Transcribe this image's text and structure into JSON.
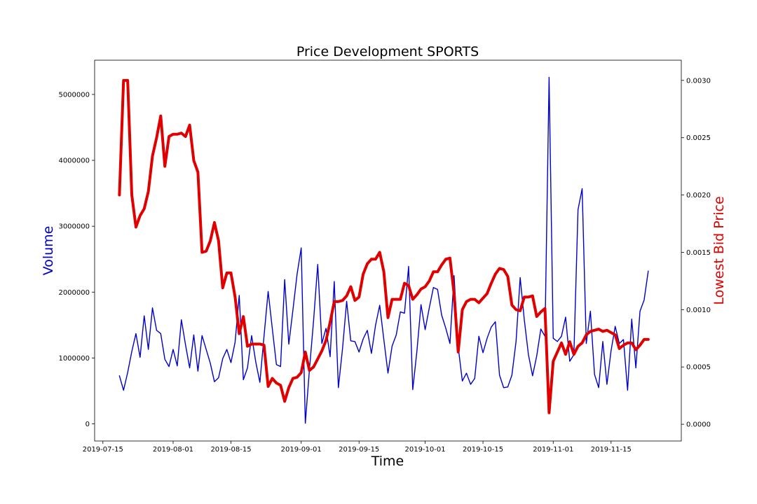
{
  "chart_data": {
    "type": "line",
    "title": "Price Development SPORTS",
    "xlabel": "Time",
    "ylabel_left": "Volume",
    "ylabel_right": "Lowest Bid Price",
    "grid": false,
    "x_start": "2019-07-19",
    "x_tick_labels": [
      "2019-07-15",
      "2019-08-01",
      "2019-08-15",
      "2019-09-01",
      "2019-09-15",
      "2019-10-01",
      "2019-10-15",
      "2019-11-01",
      "2019-11-15"
    ],
    "x_tick_days": [
      -4,
      13,
      27,
      44,
      58,
      74,
      88,
      105,
      119
    ],
    "xlim_days": [
      -6,
      136
    ],
    "ylim_left": [
      -260000,
      5520000
    ],
    "y_left_ticks": [
      0,
      1000000,
      2000000,
      3000000,
      4000000,
      5000000
    ],
    "y_left_tick_labels": [
      "0",
      "1000000",
      "2000000",
      "3000000",
      "4000000",
      "5000000"
    ],
    "ylim_right": [
      -0.000146,
      0.003176
    ],
    "y_right_ticks": [
      0,
      0.0005,
      0.001,
      0.0015,
      0.002,
      0.0025,
      0.003
    ],
    "y_right_tick_labels": [
      "0.0000",
      "0.0005",
      "0.0010",
      "0.0015",
      "0.0020",
      "0.0025",
      "0.0030"
    ],
    "series": [
      {
        "name": "Volume",
        "axis": "left",
        "color": "#0000cc",
        "values": [
          730000,
          510000,
          780000,
          1100000,
          1370000,
          1010000,
          1640000,
          1130000,
          1760000,
          1420000,
          1370000,
          980000,
          870000,
          1130000,
          880000,
          1580000,
          1200000,
          850000,
          1350000,
          800000,
          1340000,
          1130000,
          920000,
          640000,
          700000,
          990000,
          1130000,
          930000,
          1240000,
          1950000,
          670000,
          850000,
          1340000,
          940000,
          630000,
          1330000,
          2010000,
          1450000,
          900000,
          870000,
          2190000,
          1210000,
          1730000,
          2270000,
          2670000,
          10000,
          830000,
          1570000,
          2420000,
          1220000,
          1450000,
          1020000,
          2160000,
          550000,
          1140000,
          1860000,
          1260000,
          1250000,
          1090000,
          1290000,
          1420000,
          1070000,
          1500000,
          1800000,
          1280000,
          770000,
          1180000,
          1350000,
          1700000,
          1680000,
          2390000,
          520000,
          1100000,
          1810000,
          1430000,
          1760000,
          2070000,
          2040000,
          1650000,
          1450000,
          1220000,
          2250000,
          1170000,
          650000,
          770000,
          600000,
          690000,
          1330000,
          1080000,
          1300000,
          1470000,
          1550000,
          740000,
          550000,
          560000,
          740000,
          1250000,
          2220000,
          1580000,
          1050000,
          730000,
          1030000,
          1440000,
          1330000,
          5260000,
          1300000,
          1250000,
          1330000,
          1620000,
          950000,
          1050000,
          3250000,
          3570000,
          1220000,
          1710000,
          750000,
          550000,
          1250000,
          600000,
          1110000,
          1480000,
          1220000,
          1280000,
          510000,
          1590000,
          850000,
          1710000,
          1880000,
          2320000
        ]
      },
      {
        "name": "Lowest Bid Price",
        "axis": "right",
        "color": "#e00000",
        "values": [
          0.002,
          0.003,
          0.003,
          0.002,
          0.00172,
          0.00182,
          0.00188,
          0.00203,
          0.00234,
          0.0025,
          0.00269,
          0.00225,
          0.00251,
          0.00253,
          0.00253,
          0.00254,
          0.00251,
          0.00261,
          0.0023,
          0.0022,
          0.0015,
          0.00151,
          0.0016,
          0.00176,
          0.0016,
          0.00119,
          0.00132,
          0.00132,
          0.00111,
          0.00079,
          0.00094,
          0.00068,
          0.0007,
          0.0007,
          0.0007,
          0.00069,
          0.00033,
          0.0004,
          0.00036,
          0.00034,
          0.0002,
          0.00032,
          0.0004,
          0.00041,
          0.00045,
          0.00063,
          0.00047,
          0.0005,
          0.00057,
          0.00064,
          0.00073,
          0.00089,
          0.00107,
          0.00107,
          0.00108,
          0.00112,
          0.0012,
          0.00108,
          0.00111,
          0.00131,
          0.0014,
          0.00144,
          0.00144,
          0.0015,
          0.00133,
          0.00093,
          0.00109,
          0.00109,
          0.00109,
          0.00123,
          0.00121,
          0.00109,
          0.00113,
          0.00118,
          0.0012,
          0.00125,
          0.00133,
          0.00133,
          0.00139,
          0.00144,
          0.00145,
          0.00114,
          0.00063,
          0.001,
          0.00107,
          0.00109,
          0.00109,
          0.00106,
          0.0011,
          0.00114,
          0.00123,
          0.00131,
          0.00136,
          0.00135,
          0.00129,
          0.00104,
          0.001,
          0.00099,
          0.00111,
          0.00111,
          0.00112,
          0.00094,
          0.00098,
          0.00101,
          0.0001,
          0.00055,
          0.00063,
          0.00071,
          0.00061,
          0.00072,
          0.00061,
          0.00068,
          0.00071,
          0.00078,
          0.00081,
          0.00082,
          0.00083,
          0.00081,
          0.00082,
          0.0008,
          0.00078,
          0.00066,
          0.00069,
          0.00071,
          0.00071,
          0.00065,
          0.00069,
          0.00074,
          0.00074
        ]
      }
    ]
  }
}
